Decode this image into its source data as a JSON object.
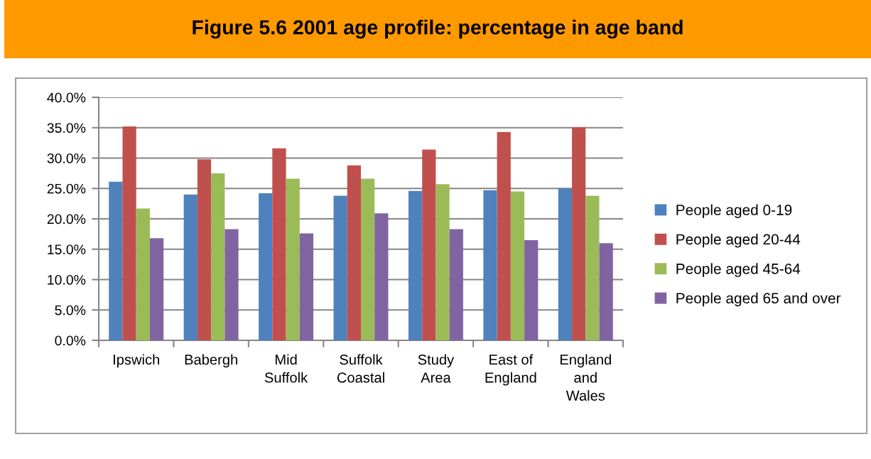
{
  "chart_data": {
    "type": "bar",
    "title": "Figure 5.6 2001 age profile: percentage in age band",
    "categories": [
      "Ipswich",
      "Babergh",
      "Mid\nSuffolk",
      "Suffolk\nCoastal",
      "Study\nArea",
      "East of\nEngland",
      "England\nand\nWales"
    ],
    "series": [
      {
        "name": "People aged 0-19",
        "color": "#4f81bd",
        "values": [
          26.1,
          24.0,
          24.2,
          23.8,
          24.6,
          24.7,
          25.0
        ]
      },
      {
        "name": "People aged 20-44",
        "color": "#c0504d",
        "values": [
          35.2,
          29.8,
          31.6,
          28.8,
          31.4,
          34.3,
          35.1
        ]
      },
      {
        "name": "People aged 45-64",
        "color": "#9bbb59",
        "values": [
          21.7,
          27.5,
          26.6,
          26.6,
          25.7,
          24.5,
          23.8
        ]
      },
      {
        "name": "People aged 65 and over",
        "color": "#8064a2",
        "values": [
          16.8,
          18.3,
          17.6,
          20.9,
          18.3,
          16.5,
          16.0
        ]
      }
    ],
    "ylim": [
      0,
      40
    ],
    "yticks": [
      {
        "value": 0,
        "label": "0.0%"
      },
      {
        "value": 5,
        "label": "5.0%"
      },
      {
        "value": 10,
        "label": "10.0%"
      },
      {
        "value": 15,
        "label": "15.0%"
      },
      {
        "value": 20,
        "label": "20.0%"
      },
      {
        "value": 25,
        "label": "25.0%"
      },
      {
        "value": 30,
        "label": "30.0%"
      },
      {
        "value": 35,
        "label": "35.0%"
      },
      {
        "value": 40,
        "label": "40.0%"
      }
    ],
    "grid": "y",
    "legend": "right"
  }
}
